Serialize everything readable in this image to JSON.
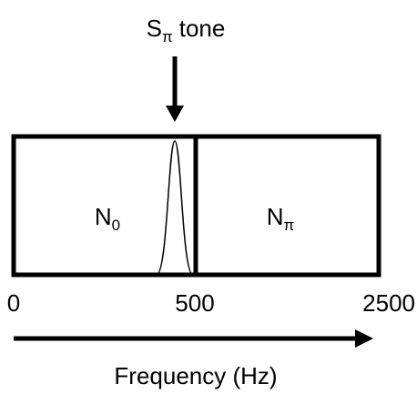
{
  "title": {
    "main": "S",
    "subscript": "π",
    "suffix": "tone"
  },
  "regions": [
    {
      "label": "N",
      "subscript": "0"
    },
    {
      "label": "N",
      "subscript": "π"
    }
  ],
  "axis": {
    "ticks": [
      "0",
      "500",
      "2500"
    ],
    "label": "Frequency (Hz)"
  }
}
